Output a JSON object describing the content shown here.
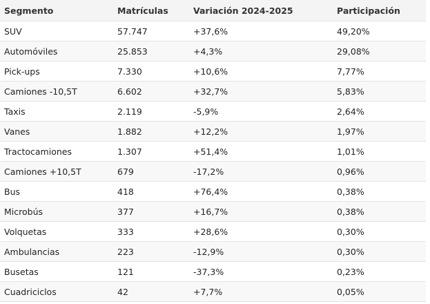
{
  "table": {
    "header": [
      "Segmento",
      "Matrículas",
      "Variación 2024-2025",
      "Participación"
    ],
    "rows": [
      [
        "SUV",
        "57.747",
        "+37,6%",
        "49,20%"
      ],
      [
        "Automóviles",
        "25.853",
        "+4,3%",
        "29,08%"
      ],
      [
        "Pick-ups",
        "7.330",
        "+10,6%",
        "7,77%"
      ],
      [
        "Camiones -10,5T",
        "6.602",
        "+32,7%",
        "5,83%"
      ],
      [
        "Taxis",
        "2.119",
        "-5,9%",
        "2,64%"
      ],
      [
        "Vanes",
        "1.882",
        "+12,2%",
        "1,97%"
      ],
      [
        "Tractocamiones",
        "1.307",
        "+51,4%",
        "1,01%"
      ],
      [
        "Camiones +10,5T",
        "679",
        "-17,2%",
        "0,96%"
      ],
      [
        "Bus",
        "418",
        "+76,4%",
        "0,38%"
      ],
      [
        "Microbús",
        "377",
        "+16,7%",
        "0,38%"
      ],
      [
        "Volquetas",
        "333",
        "+28,6%",
        "0,30%"
      ],
      [
        "Ambulancias",
        "223",
        "-12,9%",
        "0,30%"
      ],
      [
        "Busetas",
        "121",
        "-37,3%",
        "0,23%"
      ],
      [
        "Cuadriciclos",
        "42",
        "+7,7%",
        "0,05%"
      ]
    ]
  }
}
